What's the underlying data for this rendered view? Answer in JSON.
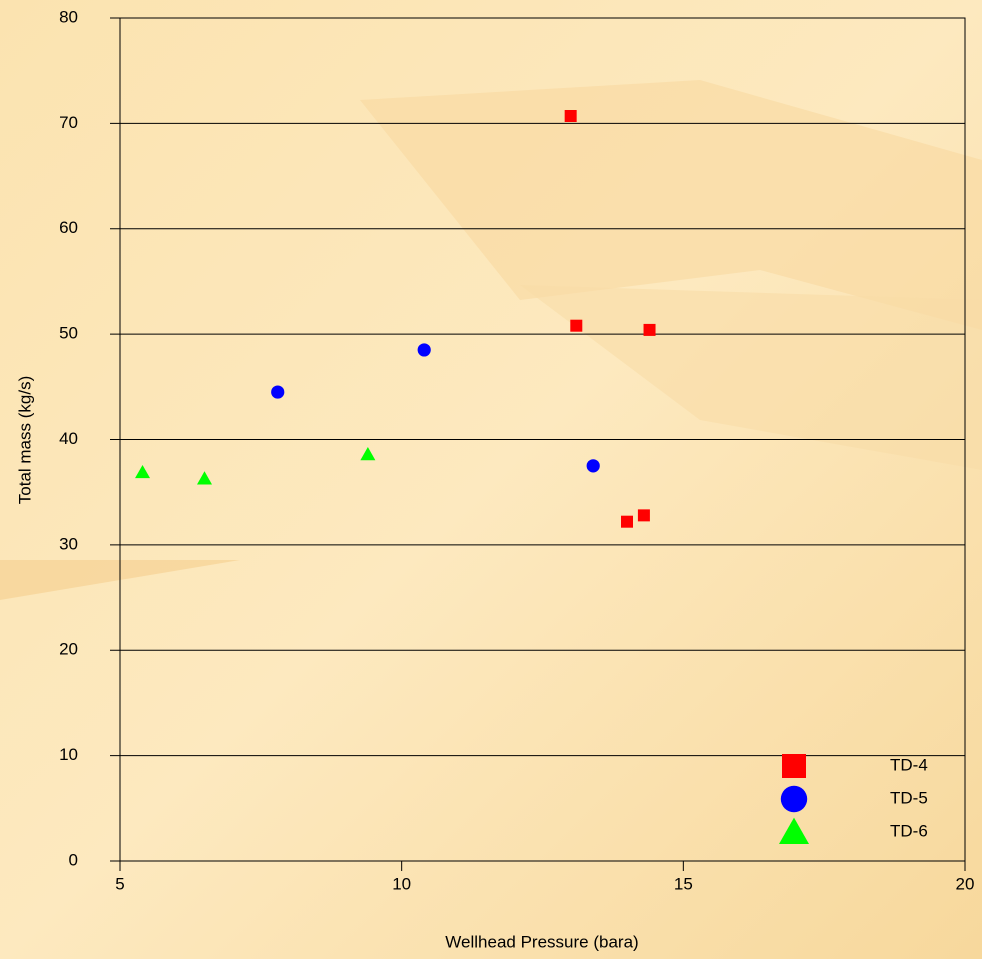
{
  "chart_data": {
    "type": "scatter",
    "xlabel": "Wellhead Pressure (bara)",
    "ylabel": "Total mass (kg/s)",
    "xlim": [
      5,
      20
    ],
    "ylim": [
      0,
      80
    ],
    "xticks": [
      5,
      10,
      15,
      20
    ],
    "yticks": [
      0,
      10,
      20,
      30,
      40,
      50,
      60,
      70,
      80
    ],
    "grid": true,
    "series": [
      {
        "name": "TD-4",
        "color": "#ff0000",
        "marker": "square",
        "x": [
          13.0,
          13.1,
          14.4,
          14.0,
          14.3
        ],
        "values": [
          70.7,
          50.8,
          50.4,
          32.2,
          32.8
        ]
      },
      {
        "name": "TD-5",
        "color": "#0000ff",
        "marker": "circle",
        "x": [
          7.8,
          10.4,
          13.4
        ],
        "values": [
          44.5,
          48.5,
          37.5
        ]
      },
      {
        "name": "TD-6",
        "color": "#00ff00",
        "marker": "triangle",
        "x": [
          5.4,
          6.5,
          9.4
        ],
        "values": [
          36.9,
          36.3,
          38.6
        ]
      }
    ]
  }
}
